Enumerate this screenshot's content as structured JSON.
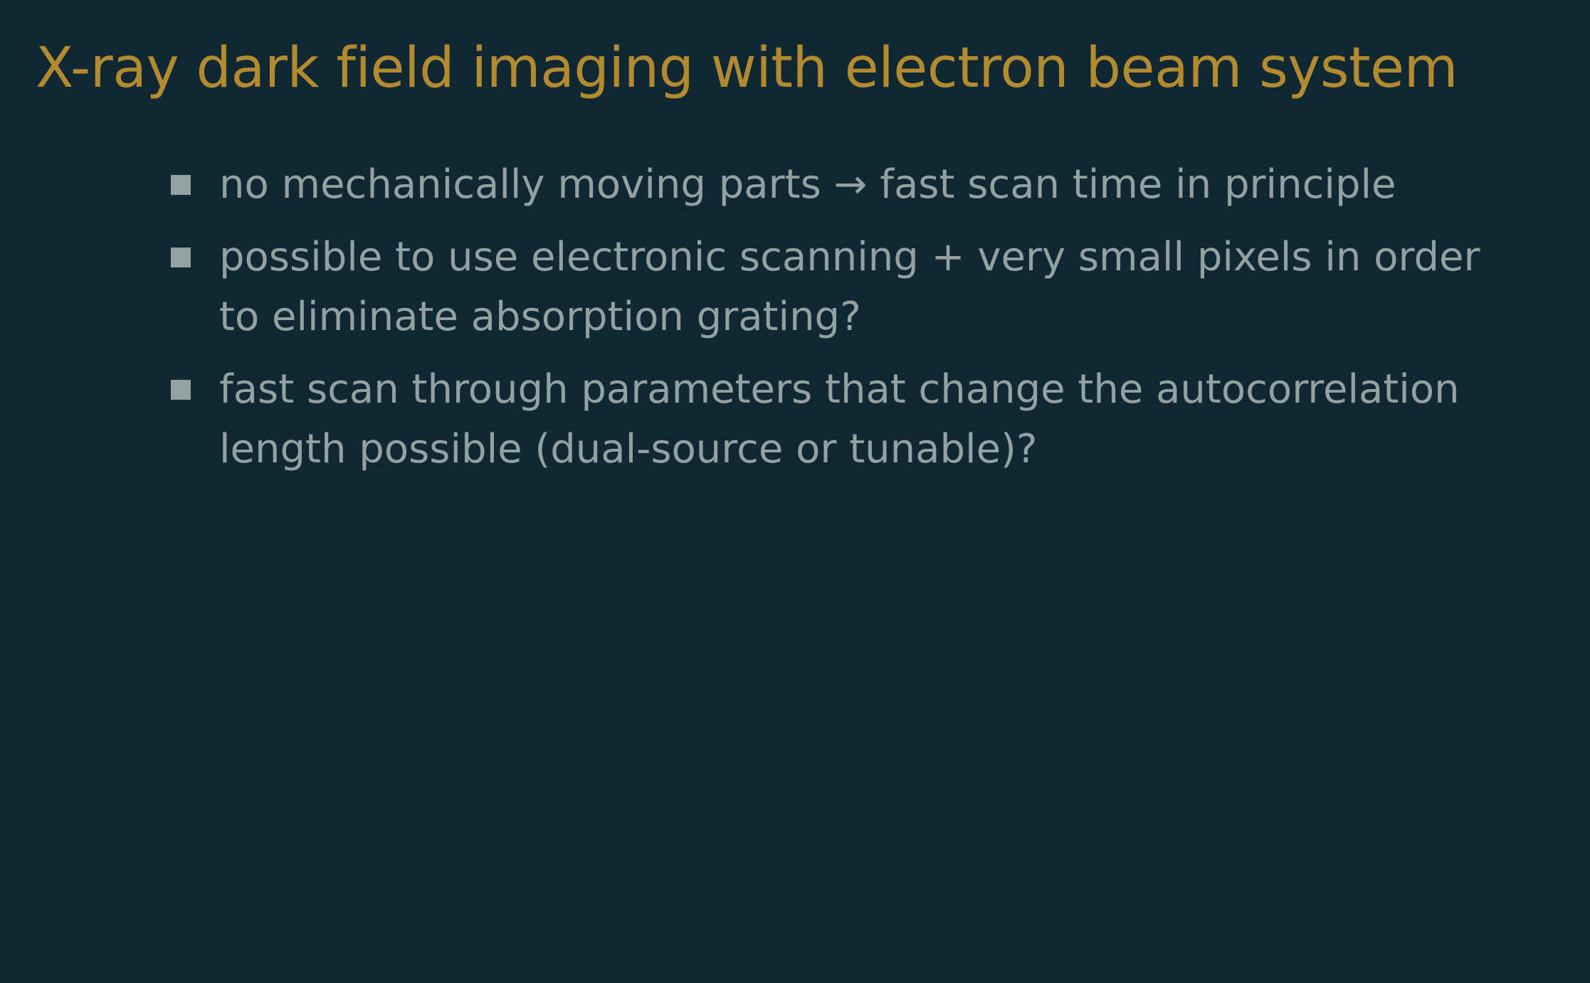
{
  "slide": {
    "title": "X-ray dark field imaging with electron beam system",
    "bullets": [
      "no mechanically moving parts → fast scan time in principle",
      "possible to use electronic scanning + very small pixels in order to eliminate absorption grating?",
      "fast scan through parameters that change the autocorrelation length possible (dual-source or tunable)?"
    ],
    "bullet_icon": "square-bullet-icon"
  },
  "colors": {
    "background": "#0f2833",
    "title": "#b48a2e",
    "text": "#93a1a1"
  }
}
